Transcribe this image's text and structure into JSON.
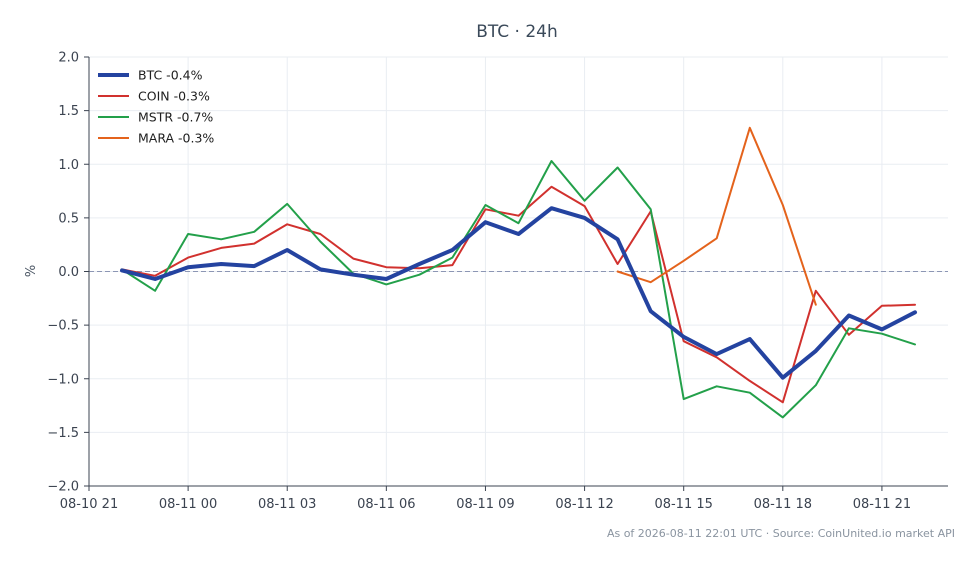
{
  "chart_data": {
    "type": "line",
    "title": "BTC · 24h",
    "ylabel": "%",
    "xlabel": "",
    "ylim": [
      -2.0,
      2.0
    ],
    "yticks": [
      2.0,
      1.5,
      1.0,
      0.5,
      0.0,
      -0.5,
      -1.0,
      -1.5,
      -2.0
    ],
    "ytick_labels": [
      "2.0",
      "1.5",
      "1.0",
      "0.5",
      "0.0",
      "−0.5",
      "−1.0",
      "−1.5",
      "−2.0"
    ],
    "xlim": [
      0,
      26
    ],
    "xticks": [
      0,
      3,
      6,
      9,
      12,
      15,
      18,
      21,
      24
    ],
    "xtick_labels": [
      "08-10 21",
      "08-11 00",
      "08-11 03",
      "08-11 06",
      "08-11 09",
      "08-11 12",
      "08-11 15",
      "08-11 18",
      "08-11 21"
    ],
    "x": [
      1,
      2,
      3,
      4,
      5,
      6,
      7,
      8,
      9,
      10,
      11,
      12,
      13,
      14,
      15,
      16,
      17,
      18,
      19,
      20,
      21,
      22,
      23,
      24,
      25
    ],
    "grid": true,
    "zero_line": true,
    "legend_position": "top-left",
    "series": [
      {
        "name": "BTC -0.4%",
        "color": "#2443a0",
        "bold": true,
        "x": [
          1,
          2,
          3,
          4,
          5,
          6,
          7,
          8,
          9,
          10,
          11,
          12,
          13,
          14,
          15,
          16,
          17,
          18,
          19,
          20,
          21,
          22,
          23,
          24,
          25
        ],
        "values": [
          0.01,
          -0.07,
          0.04,
          0.07,
          0.05,
          0.2,
          0.02,
          -0.03,
          -0.07,
          0.07,
          0.2,
          0.46,
          0.35,
          0.59,
          0.5,
          0.3,
          -0.37,
          -0.61,
          -0.77,
          -0.63,
          -0.99,
          -0.74,
          -0.41,
          -0.54,
          -0.38
        ]
      },
      {
        "name": "COIN -0.3%",
        "color": "#d1312e",
        "bold": false,
        "x": [
          1,
          2,
          3,
          4,
          5,
          6,
          7,
          8,
          9,
          10,
          11,
          12,
          13,
          14,
          15,
          16,
          17,
          18,
          19,
          20,
          21,
          22,
          23,
          24,
          25
        ],
        "values": [
          0.02,
          -0.04,
          0.13,
          0.22,
          0.26,
          0.44,
          0.35,
          0.12,
          0.04,
          0.03,
          0.06,
          0.58,
          0.52,
          0.79,
          0.61,
          0.07,
          0.56,
          -0.65,
          -0.8,
          -1.02,
          -1.22,
          -0.18,
          -0.59,
          -0.32,
          -0.31
        ]
      },
      {
        "name": "MSTR -0.7%",
        "color": "#23a04a",
        "bold": false,
        "x": [
          1,
          2,
          3,
          4,
          5,
          6,
          7,
          8,
          9,
          10,
          11,
          12,
          13,
          14,
          15,
          16,
          17,
          18,
          19,
          20,
          21,
          22,
          23,
          24,
          25
        ],
        "values": [
          0.02,
          -0.18,
          0.35,
          0.3,
          0.37,
          0.63,
          0.28,
          -0.02,
          -0.12,
          -0.03,
          0.13,
          0.62,
          0.45,
          1.03,
          0.66,
          0.97,
          0.58,
          -1.19,
          -1.07,
          -1.13,
          -1.36,
          -1.06,
          -0.53,
          -0.58,
          -0.68
        ]
      },
      {
        "name": "MARA -0.3%",
        "color": "#e4631c",
        "bold": false,
        "x": [
          16,
          17,
          18,
          19,
          20,
          21,
          22
        ],
        "values": [
          0.0,
          -0.1,
          0.1,
          0.31,
          1.34,
          0.62,
          -0.31
        ]
      }
    ]
  },
  "footer": {
    "source_note": "As of 2026-08-11 22:01 UTC · Source: CoinUnited.io market API"
  }
}
